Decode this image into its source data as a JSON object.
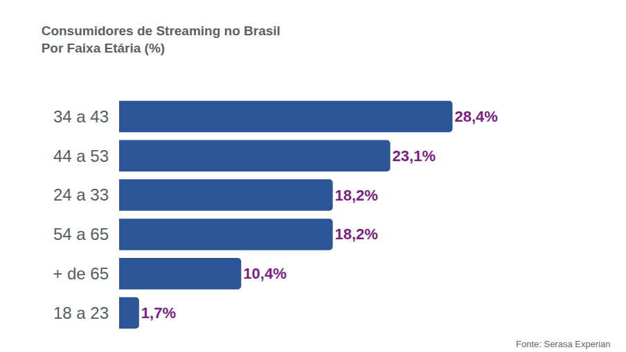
{
  "chart_data": {
    "type": "bar",
    "orientation": "horizontal",
    "title": "Consumidores de Streaming no Brasil",
    "subtitle": "Por Faixa Etária (%)",
    "categories": [
      "34 a 43",
      "44 a 53",
      "24 a 33",
      "54 a 65",
      "+ de 65",
      "18 a 23"
    ],
    "values": [
      28.4,
      23.1,
      18.2,
      18.2,
      10.4,
      1.7
    ],
    "value_labels": [
      "28,4%",
      "23,1%",
      "18,2%",
      "18,2%",
      "10,4%",
      "1,7%"
    ],
    "color": "#2b5597",
    "xlim": [
      0,
      42
    ],
    "data_labels": true,
    "tick_labels": "y",
    "grid": false,
    "annotations": [
      "Fonte: Serasa Experian"
    ]
  }
}
